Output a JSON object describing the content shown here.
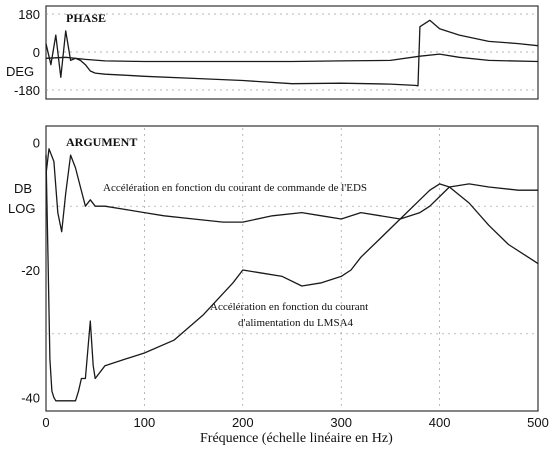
{
  "chart_data": [
    {
      "type": "line",
      "title": "PHASE",
      "ylabel": "DEG",
      "ylim": [
        -180,
        180
      ],
      "yticks": [
        {
          "value": 180,
          "label": "180"
        },
        {
          "value": 0,
          "label": "0"
        },
        {
          "value": -180,
          "label": "-180"
        }
      ],
      "xlim": [
        0,
        500
      ],
      "series": [
        {
          "x": [
            0,
            5,
            10,
            15,
            20,
            25,
            30,
            35,
            40,
            45,
            50,
            60,
            80,
            100,
            150,
            200,
            250,
            300,
            350,
            375,
            378,
            380,
            390,
            400,
            420,
            450,
            480,
            500
          ],
          "values": [
            40,
            -60,
            80,
            -120,
            100,
            -40,
            -30,
            -40,
            -60,
            -90,
            -100,
            -105,
            -110,
            -115,
            -125,
            -135,
            -150,
            -148,
            -152,
            -158,
            -160,
            120,
            150,
            110,
            80,
            50,
            40,
            30
          ]
        },
        {
          "x": [
            0,
            20,
            40,
            60,
            100,
            150,
            200,
            250,
            300,
            350,
            380,
            400,
            420,
            450,
            500
          ],
          "values": [
            -30,
            -25,
            -35,
            -42,
            -45,
            -45,
            -45,
            -45,
            -42,
            -40,
            -20,
            -10,
            -25,
            -40,
            -45
          ]
        }
      ]
    },
    {
      "type": "line",
      "title": "ARGUMENT",
      "ylabel": "DB LOG",
      "ylim": [
        -41,
        1
      ],
      "yticks": [
        {
          "value": 0,
          "label": "0"
        },
        {
          "value": -20,
          "label": "-20"
        },
        {
          "value": -40,
          "label": "-40"
        }
      ],
      "xlim": [
        0,
        500
      ],
      "xticks": [
        0,
        100,
        200,
        300,
        400,
        500
      ],
      "xlabel": "Fréquence (échelle linéaire en Hz)",
      "series": [
        {
          "name": "Accélération en fonction du courant de commande de l'EDS",
          "x": [
            0,
            3,
            8,
            12,
            16,
            20,
            25,
            30,
            35,
            40,
            45,
            50,
            60,
            80,
            100,
            120,
            150,
            180,
            200,
            230,
            260,
            280,
            300,
            320,
            340,
            360,
            380,
            390,
            400,
            410,
            430,
            450,
            480,
            500
          ],
          "values": [
            -5,
            -1,
            -3,
            -11,
            -14,
            -8,
            -2,
            -4,
            -7,
            -10,
            -9,
            -10,
            -10,
            -10.5,
            -11,
            -11.5,
            -12,
            -12.5,
            -12.5,
            -11.5,
            -11,
            -11.5,
            -12,
            -11,
            -11.5,
            -12,
            -11,
            -10,
            -8.5,
            -7,
            -6.5,
            -7,
            -7.5,
            -7.5
          ]
        },
        {
          "name": "Accélération en fonction du courant d'alimentation du LMSA4",
          "x": [
            0,
            2,
            4,
            6,
            8,
            10,
            30,
            33,
            36,
            40,
            45,
            48,
            50,
            60,
            80,
            100,
            130,
            160,
            190,
            200,
            220,
            240,
            260,
            280,
            300,
            310,
            320,
            340,
            360,
            380,
            390,
            400,
            410,
            430,
            450,
            470,
            490,
            500
          ],
          "values": [
            -2,
            -18,
            -34,
            -39,
            -40,
            -40.5,
            -40.5,
            -39,
            -37,
            -37,
            -28,
            -35,
            -37,
            -35,
            -34,
            -33,
            -31,
            -27,
            -22,
            -20,
            -20.5,
            -21,
            -22.5,
            -22,
            -21,
            -20,
            -18,
            -15,
            -12,
            -9,
            -7.5,
            -6.5,
            -7,
            -9.5,
            -13,
            -16,
            -18,
            -19
          ]
        }
      ],
      "annotations": [
        {
          "text": "Accélération en fonction du courant de commande de l'EDS"
        },
        {
          "text": "Accélération en fonction du courant"
        },
        {
          "text": "d'alimentation du LMSA4"
        }
      ]
    }
  ]
}
